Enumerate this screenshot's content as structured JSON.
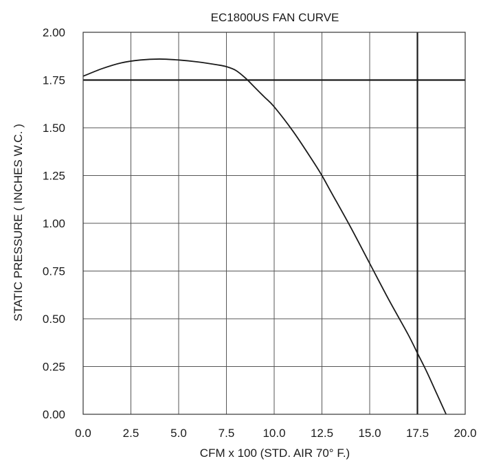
{
  "chart_data": {
    "type": "line",
    "title": "EC1800US FAN CURVE",
    "xlabel": "CFM x 100   (STD. AIR 70° F.)",
    "ylabel": "STATIC PRESSURE ( INCHES W.C. )",
    "xlim": [
      0,
      20
    ],
    "ylim": [
      0,
      2
    ],
    "x_ticks": [
      "0.0",
      "2.5",
      "5.0",
      "7.5",
      "10.0",
      "12.5",
      "15.0",
      "17.5",
      "20.0"
    ],
    "y_ticks": [
      "0.00",
      "0.25",
      "0.50",
      "0.75",
      "1.00",
      "1.25",
      "1.50",
      "1.75",
      "2.00"
    ],
    "grid": true,
    "series": [
      {
        "x": [
          0.0,
          1.0,
          2.0,
          3.0,
          4.0,
          5.0,
          6.0,
          7.0,
          7.5,
          8.0,
          8.5,
          9.0,
          9.5,
          10.0,
          11.0,
          12.0,
          12.5,
          13.0,
          14.0,
          15.0,
          16.0,
          17.0,
          17.5,
          18.0,
          18.5,
          19.0
        ],
        "y": [
          1.77,
          1.81,
          1.84,
          1.855,
          1.86,
          1.855,
          1.845,
          1.83,
          1.82,
          1.8,
          1.76,
          1.71,
          1.66,
          1.61,
          1.48,
          1.33,
          1.25,
          1.16,
          0.98,
          0.79,
          0.6,
          0.42,
          0.32,
          0.22,
          0.11,
          0.0
        ]
      }
    ],
    "reference_lines": [
      {
        "orientation": "horizontal",
        "value": 1.75
      },
      {
        "orientation": "vertical",
        "value": 17.5
      }
    ],
    "colors": {
      "line": "#1a1a1a",
      "grid": "#555555",
      "reference": "#1a1a1a"
    }
  }
}
